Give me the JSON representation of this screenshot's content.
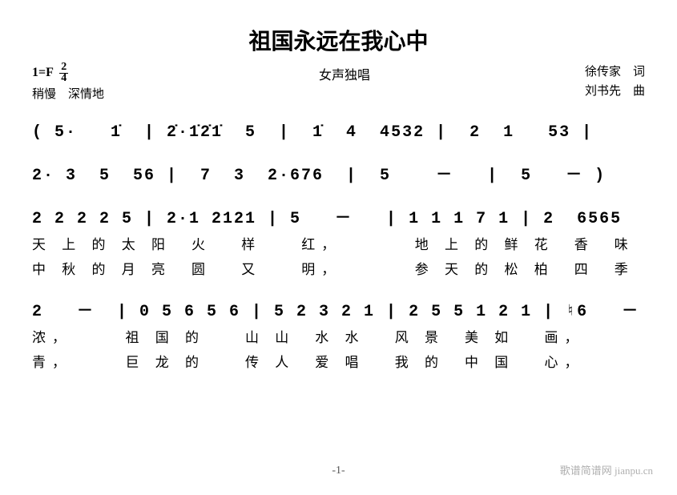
{
  "title": "祖国永远在我心中",
  "subtitle": "女声独唱",
  "key_signature": "1=F",
  "time_sig_top": "2",
  "time_sig_bot": "4",
  "tempo_marking": "稍慢　深情地",
  "lyricist": "徐传家　词",
  "composer": "刘书先　曲",
  "notation": {
    "line1": "( 5·   1̇  | 2̇·1̇2̇1̇  5  |  1̇  4  4532 |  2  1   53 |",
    "line2": "2· 3  5  56 |  7  3  2·676  |  5    －   |  5   － )",
    "line3": "2 2 2 2 5 | 2·1 2121 | 5   －   | 1 1 1 7 1 | 2  6565",
    "line4": "2   －  | 0 5 6 5 6 | 5 2 3 2 1 | 2 5 5 1 2 1 | ♮6   －"
  },
  "lyrics": {
    "l3a": "天 上 的 太 阳　火　 样　　红，　　　　地 上 的 鲜 花　香　味",
    "l3b": "中 秋 的 月 亮　圆　 又　　明，　　　　参 天 的 松 柏　四　季",
    "l4a": "浓，　　　祖 国 的　　山 山　水 水　 风 景　美 如　 画，",
    "l4b": "青，　　　巨 龙 的　　传 人　爱 唱　 我 的　中 国　 心，"
  },
  "page_number": "-1-",
  "watermark": "歌谱简谱网 jianpu.cn",
  "colors": {
    "text": "#000000",
    "background": "#ffffff",
    "watermark": "#b0b0b0"
  }
}
